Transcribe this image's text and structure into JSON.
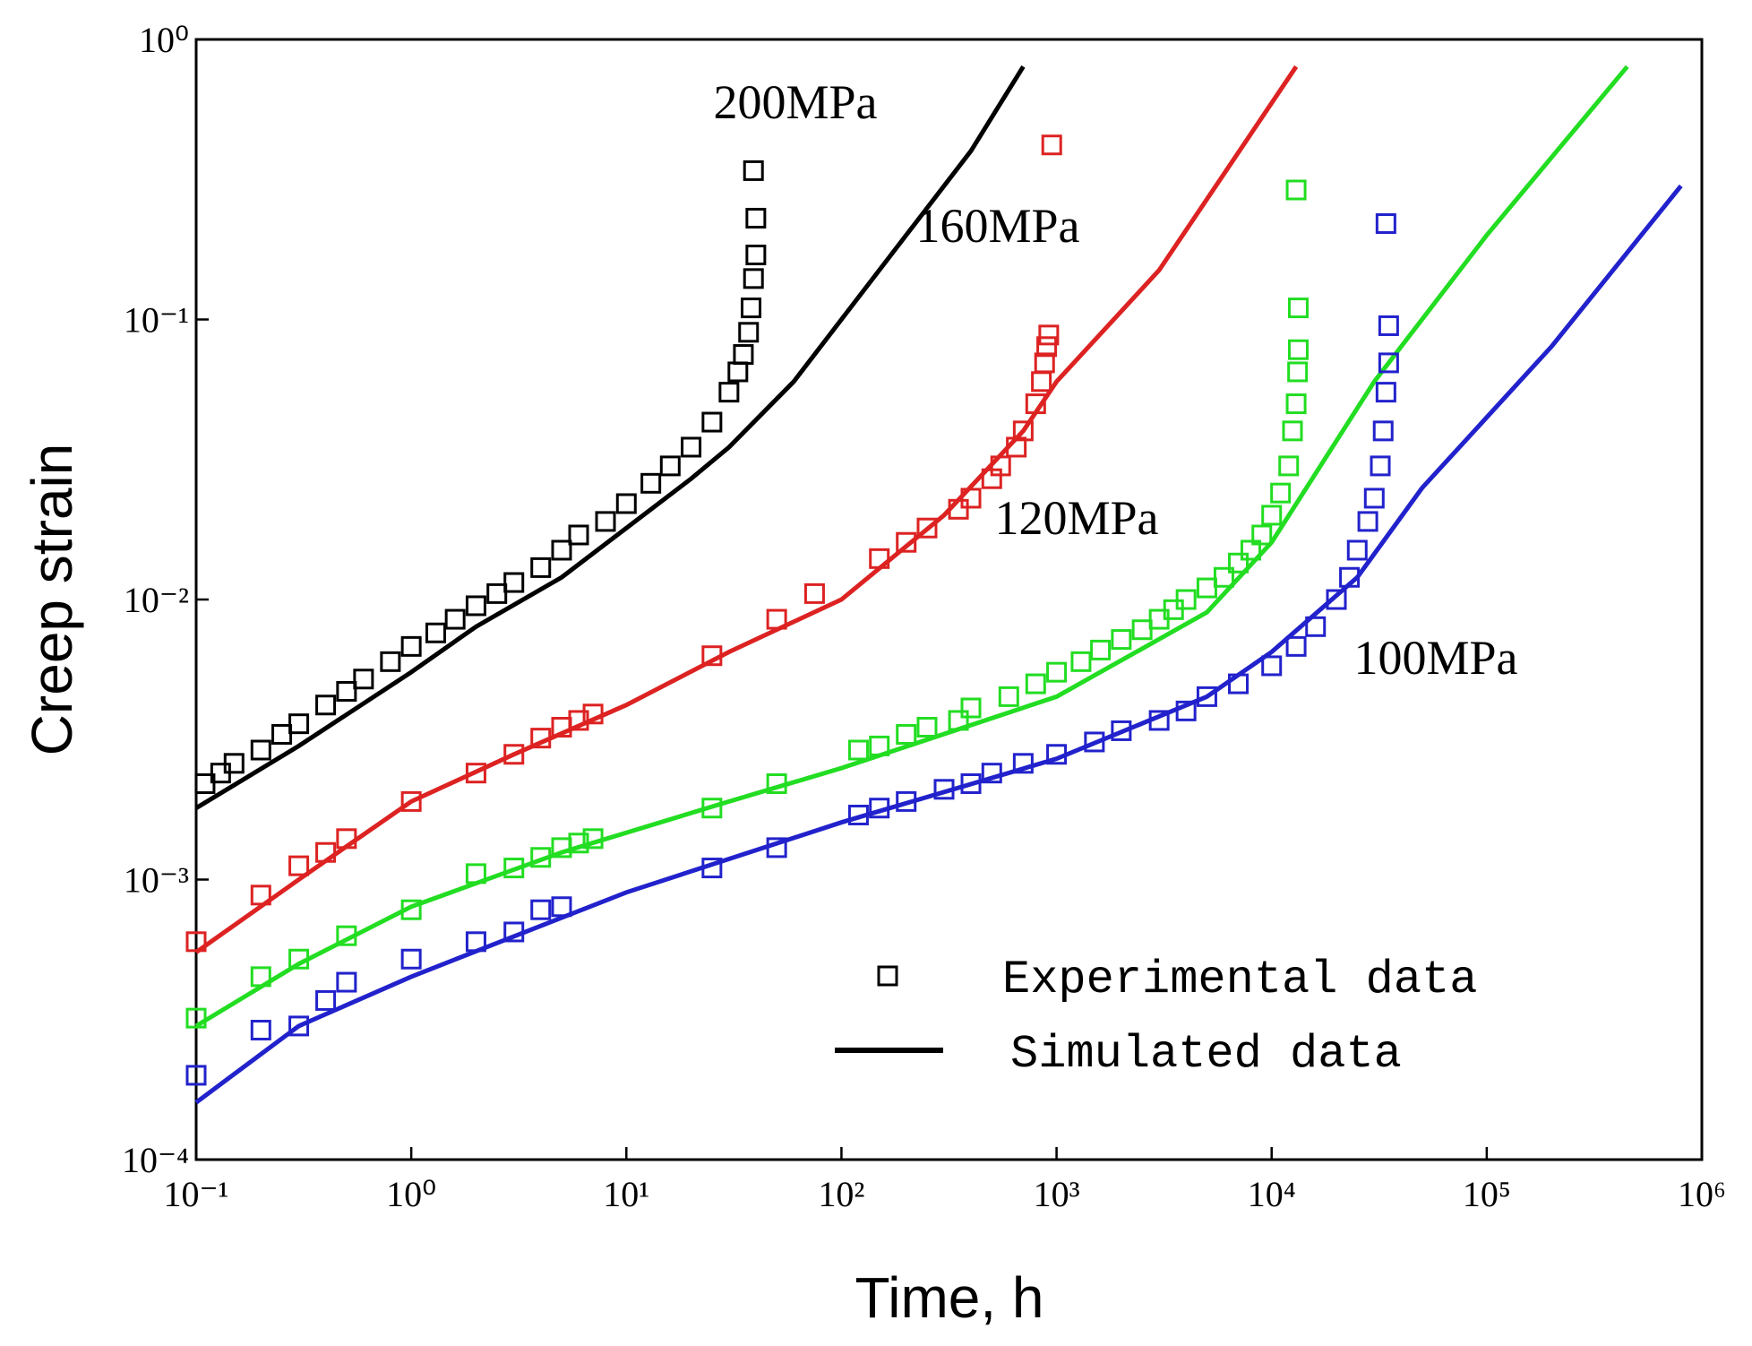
{
  "chart_data": {
    "type": "scatter",
    "xlabel": "Time, h",
    "ylabel": "Creep strain",
    "xscale": "log",
    "yscale": "log",
    "xlim": [
      0.1,
      1000000
    ],
    "ylim": [
      0.0001,
      1
    ],
    "xticks": [
      {
        "value": 0.1,
        "label": "10⁻¹"
      },
      {
        "value": 1,
        "label": "10⁰"
      },
      {
        "value": 10,
        "label": "10¹"
      },
      {
        "value": 100,
        "label": "10²"
      },
      {
        "value": 1000,
        "label": "10³"
      },
      {
        "value": 10000,
        "label": "10⁴"
      },
      {
        "value": 100000,
        "label": "10⁵"
      },
      {
        "value": 1000000,
        "label": "10⁶"
      }
    ],
    "yticks": [
      {
        "value": 0.0001,
        "label": "10⁻⁴"
      },
      {
        "value": 0.001,
        "label": "10⁻³"
      },
      {
        "value": 0.01,
        "label": "10⁻²"
      },
      {
        "value": 0.1,
        "label": "10⁻¹"
      },
      {
        "value": 1,
        "label": "10⁰"
      }
    ],
    "grid": false,
    "legend_position": "lower right",
    "legend": [
      {
        "label": "Experimental data",
        "marker": "square"
      },
      {
        "label": "Simulated data",
        "marker": "line"
      }
    ],
    "legend_color": "#000000",
    "series": [
      {
        "name": "200MPa",
        "color": "#000000",
        "experimental": {
          "x": [
            0.11,
            0.13,
            0.15,
            0.2,
            0.25,
            0.3,
            0.4,
            0.5,
            0.6,
            0.8,
            1,
            1.3,
            1.6,
            2,
            2.5,
            3,
            4,
            5,
            6,
            8,
            10,
            13,
            16,
            20,
            25,
            30,
            33,
            35,
            37,
            38,
            39,
            40,
            40,
            39
          ],
          "values": [
            0.0022,
            0.0024,
            0.0026,
            0.0029,
            0.0033,
            0.0036,
            0.0042,
            0.0047,
            0.0052,
            0.006,
            0.0068,
            0.0076,
            0.0085,
            0.0095,
            0.0105,
            0.0115,
            0.013,
            0.015,
            0.017,
            0.019,
            0.022,
            0.026,
            0.03,
            0.035,
            0.043,
            0.055,
            0.065,
            0.075,
            0.09,
            0.11,
            0.14,
            0.17,
            0.23,
            0.34
          ]
        },
        "simulated": {
          "x": [
            0.1,
            0.3,
            1,
            2,
            5,
            10,
            20,
            30,
            60,
            100,
            200,
            400,
            700
          ],
          "values": [
            0.0018,
            0.003,
            0.0055,
            0.008,
            0.012,
            0.018,
            0.027,
            0.035,
            0.06,
            0.1,
            0.2,
            0.4,
            0.8
          ]
        }
      },
      {
        "name": "160MPa",
        "color": "#dd2222",
        "experimental": {
          "x": [
            0.1,
            0.2,
            0.3,
            0.4,
            0.5,
            1,
            2,
            3,
            4,
            5,
            6,
            7,
            25,
            50,
            75,
            150,
            200,
            250,
            350,
            400,
            500,
            550,
            650,
            700,
            800,
            850,
            880,
            900,
            920,
            950
          ],
          "values": [
            0.0006,
            0.00088,
            0.00112,
            0.00125,
            0.0014,
            0.0019,
            0.0024,
            0.0028,
            0.0032,
            0.0035,
            0.0037,
            0.0039,
            0.0063,
            0.0085,
            0.0105,
            0.014,
            0.016,
            0.018,
            0.021,
            0.023,
            0.027,
            0.03,
            0.035,
            0.04,
            0.05,
            0.06,
            0.07,
            0.08,
            0.088,
            0.42
          ]
        },
        "simulated": {
          "x": [
            0.1,
            0.3,
            1,
            3,
            10,
            30,
            100,
            300,
            700,
            1000,
            3000,
            13000
          ],
          "values": [
            0.00055,
            0.001,
            0.0019,
            0.0028,
            0.0042,
            0.0065,
            0.01,
            0.02,
            0.04,
            0.06,
            0.15,
            0.8
          ]
        }
      },
      {
        "name": "120MPa",
        "color": "#22dd22",
        "experimental": {
          "x": [
            0.1,
            0.2,
            0.3,
            0.5,
            1,
            2,
            3,
            4,
            5,
            6,
            7,
            25,
            50,
            120,
            150,
            200,
            250,
            350,
            400,
            600,
            800,
            1000,
            1300,
            1600,
            2000,
            2500,
            3000,
            3500,
            4000,
            5000,
            6000,
            7000,
            8000,
            9000,
            10000,
            11000,
            12000,
            12500,
            13000,
            13200,
            13300,
            13300,
            13000
          ],
          "values": [
            0.00032,
            0.00045,
            0.00052,
            0.00063,
            0.00078,
            0.00105,
            0.0011,
            0.0012,
            0.0013,
            0.00135,
            0.0014,
            0.0018,
            0.0022,
            0.0029,
            0.003,
            0.0033,
            0.0035,
            0.0037,
            0.0041,
            0.0045,
            0.005,
            0.0055,
            0.006,
            0.0066,
            0.0072,
            0.0078,
            0.0085,
            0.0092,
            0.01,
            0.011,
            0.012,
            0.0135,
            0.015,
            0.017,
            0.02,
            0.024,
            0.03,
            0.04,
            0.05,
            0.065,
            0.078,
            0.11,
            0.29
          ]
        },
        "simulated": {
          "x": [
            0.1,
            0.3,
            1,
            5,
            30,
            100,
            1000,
            5000,
            10000,
            30000,
            100000,
            450000
          ],
          "values": [
            0.0003,
            0.0005,
            0.0008,
            0.00125,
            0.0019,
            0.0025,
            0.0045,
            0.009,
            0.016,
            0.06,
            0.2,
            0.8
          ]
        }
      },
      {
        "name": "100MPa",
        "color": "#2222cc",
        "experimental": {
          "x": [
            0.1,
            0.2,
            0.3,
            0.4,
            0.5,
            1,
            2,
            3,
            4,
            5,
            25,
            50,
            120,
            150,
            200,
            300,
            400,
            500,
            700,
            1000,
            1500,
            2000,
            3000,
            4000,
            5000,
            7000,
            10000,
            13000,
            16000,
            20000,
            23000,
            25000,
            28000,
            30000,
            32000,
            33000,
            34000,
            35000,
            35000,
            34000
          ],
          "values": [
            0.0002,
            0.00029,
            0.0003,
            0.00037,
            0.00043,
            0.00052,
            0.0006,
            0.00065,
            0.00078,
            0.0008,
            0.0011,
            0.0013,
            0.0017,
            0.0018,
            0.0019,
            0.0021,
            0.0022,
            0.0024,
            0.0026,
            0.0028,
            0.0031,
            0.0034,
            0.0037,
            0.004,
            0.0045,
            0.005,
            0.0058,
            0.0068,
            0.008,
            0.01,
            0.012,
            0.015,
            0.019,
            0.023,
            0.03,
            0.04,
            0.055,
            0.07,
            0.095,
            0.22
          ]
        },
        "simulated": {
          "x": [
            0.1,
            0.3,
            1,
            10,
            100,
            1000,
            5000,
            10000,
            25000,
            50000,
            200000,
            800000
          ],
          "values": [
            0.00016,
            0.0003,
            0.00045,
            0.0009,
            0.0016,
            0.0027,
            0.0045,
            0.0065,
            0.012,
            0.025,
            0.08,
            0.3
          ]
        }
      }
    ]
  }
}
